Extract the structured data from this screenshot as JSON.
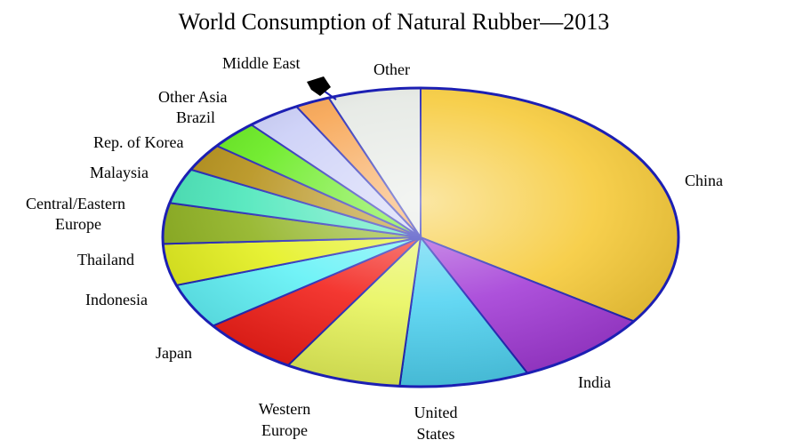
{
  "chart_data": {
    "type": "pie",
    "title": "World Consumption of Natural Rubber—2013",
    "slices": [
      {
        "label": "China",
        "value": 34.5,
        "color": "#f6c935"
      },
      {
        "label": "India",
        "value": 8.7,
        "color": "#a23ad6"
      },
      {
        "label": "United States",
        "value": 8.1,
        "color": "#4fd2f1"
      },
      {
        "label": "Western Europe",
        "value": 7.3,
        "color": "#e8f55a"
      },
      {
        "label": "Japan",
        "value": 6.3,
        "color": "#f21d16"
      },
      {
        "label": "Indonesia",
        "value": 4.9,
        "color": "#5ef1f6"
      },
      {
        "label": "Thailand",
        "value": 4.5,
        "color": "#e4f01a"
      },
      {
        "label": "Central/Eastern Europe",
        "value": 4.4,
        "color": "#8db11c"
      },
      {
        "label": "Malaysia",
        "value": 3.8,
        "color": "#46e6b8"
      },
      {
        "label": "Rep. of Korea",
        "value": 3.0,
        "color": "#b48e13"
      },
      {
        "label": "Brazil",
        "value": 3.1,
        "color": "#62ea18"
      },
      {
        "label": "Other Asia",
        "value": 3.4,
        "color": "#c9cdf7"
      },
      {
        "label": "Middle East",
        "value": 2.2,
        "color": "#f7a14b"
      },
      {
        "label": "Other",
        "value": 5.8,
        "color": "#e4e8e3"
      }
    ],
    "legend": "none"
  },
  "labels": {
    "china": "China",
    "india": "India",
    "united_states_1": "United",
    "united_states_2": "States",
    "western_europe_1": "Western",
    "western_europe_2": "Europe",
    "japan": "Japan",
    "indonesia": "Indonesia",
    "thailand": "Thailand",
    "central_eastern_1": "Central/Eastern",
    "central_eastern_2": "Europe",
    "malaysia": "Malaysia",
    "korea": "Rep. of Korea",
    "other_asia": "Other Asia",
    "brazil": "Brazil",
    "middle_east": "Middle East",
    "other": "Other"
  }
}
